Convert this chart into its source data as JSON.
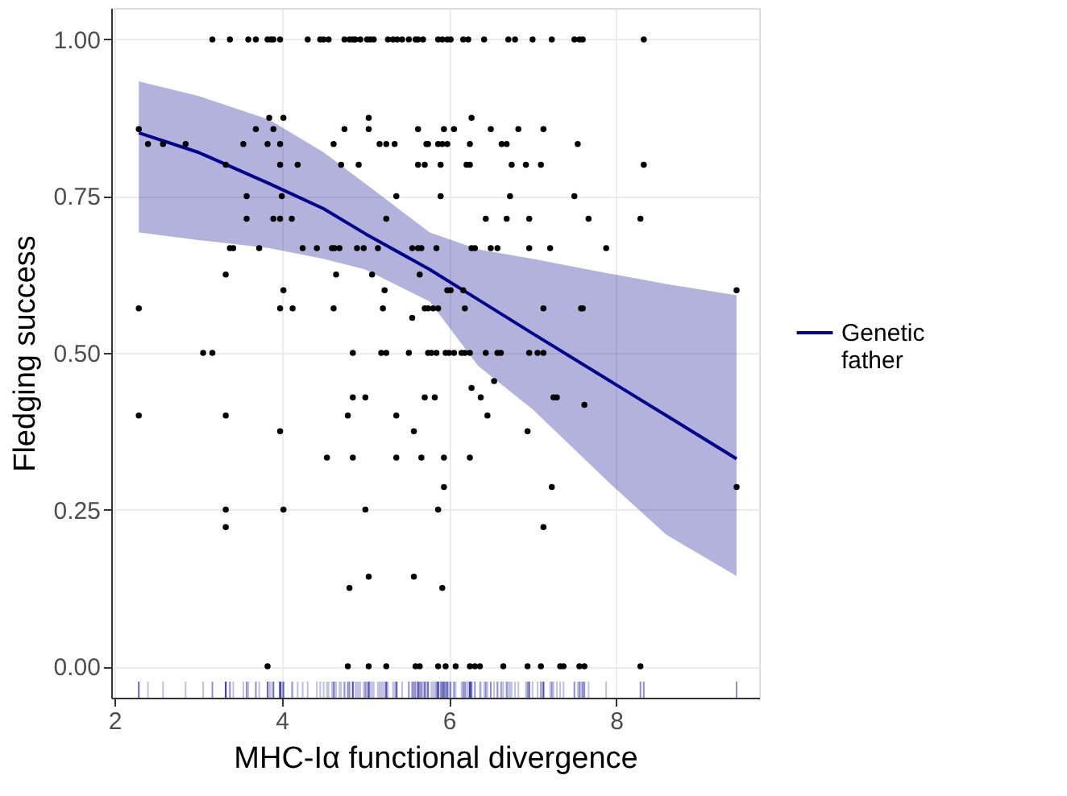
{
  "chart_data": {
    "type": "scatter",
    "xlabel": "MHC-Iα functional divergence",
    "ylabel": "Fledging success",
    "xlim": [
      1.96,
      9.71
    ],
    "xticks": [
      2,
      4,
      6,
      8
    ],
    "ylim": [
      -0.05,
      1.05
    ],
    "yticks": [
      {
        "value": 0,
        "label": "0.00"
      },
      {
        "value": 0.25,
        "label": "0.25"
      },
      {
        "value": 0.5,
        "label": "0.50"
      },
      {
        "value": 0.75,
        "label": "0.75"
      },
      {
        "value": 1,
        "label": "1.00"
      }
    ],
    "grid": true,
    "legend": "right",
    "series": [
      {
        "color": "#000000",
        "marker": "circle",
        "x": [
          3.17,
          3.38,
          3.6,
          3.69,
          3.83,
          3.87,
          3.9,
          3.98,
          4.31,
          4.46,
          4.5,
          4.56,
          4.75,
          4.81,
          4.85,
          4.88,
          4.94,
          5.02,
          5.06,
          5.1,
          5.27,
          5.33,
          5.38,
          5.44,
          5.52,
          5.6,
          5.63,
          5.69,
          5.87,
          5.92,
          5.98,
          6.02,
          6.17,
          6.23,
          6.42,
          6.71,
          6.79,
          7.0,
          7.23,
          7.5,
          7.56,
          7.6,
          8.33,
          3.85,
          4.02,
          5.04,
          6.27,
          2.29,
          3.69,
          3.9,
          4.75,
          5.04,
          5.63,
          5.94,
          6.06,
          6.5,
          6.83,
          7.13,
          2.4,
          2.58,
          2.85,
          3.54,
          3.83,
          3.98,
          4.62,
          5.17,
          5.25,
          5.35,
          5.73,
          5.75,
          5.87,
          5.92,
          5.98,
          6.25,
          6.63,
          6.69,
          7.54,
          3.33,
          3.98,
          4.19,
          4.71,
          4.92,
          5.63,
          5.71,
          5.9,
          6.21,
          6.25,
          6.75,
          6.92,
          7.1,
          8.33,
          3.58,
          4.0,
          5.37,
          5.9,
          6.73,
          7.5,
          3.58,
          3.9,
          3.98,
          4.12,
          5.25,
          6.44,
          6.69,
          6.96,
          7.67,
          8.29,
          3.38,
          3.42,
          3.73,
          4.25,
          4.42,
          4.6,
          4.63,
          4.69,
          4.9,
          4.98,
          5.15,
          5.56,
          5.63,
          5.67,
          5.85,
          6.27,
          6.31,
          6.5,
          6.58,
          6.96,
          7.21,
          7.88,
          3.33,
          4.65,
          5.08,
          5.65,
          4.02,
          5.23,
          5.98,
          6.02,
          6.17,
          9.44,
          2.29,
          3.98,
          4.13,
          4.62,
          5.21,
          5.71,
          5.75,
          5.81,
          5.87,
          6.19,
          7.13,
          7.58,
          7.6,
          5.56,
          3.06,
          3.17,
          4.85,
          5.19,
          5.25,
          5.52,
          5.75,
          5.79,
          5.85,
          5.96,
          6.0,
          6.06,
          6.15,
          6.19,
          6.25,
          6.44,
          6.58,
          6.62,
          6.96,
          7.06,
          7.13,
          6.54,
          6.27,
          4.85,
          5.0,
          5.71,
          5.83,
          6.38,
          7.25,
          7.29,
          7.62,
          2.29,
          3.33,
          4.79,
          5.37,
          6.46,
          3.98,
          5.58,
          6.94,
          4.54,
          4.85,
          5.37,
          5.67,
          5.94,
          6.25,
          5.94,
          7.23,
          9.44,
          3.33,
          4.02,
          5.0,
          5.87,
          3.33,
          7.13,
          5.04,
          5.58,
          4.81,
          5.92,
          3.83,
          4.79,
          5.04,
          5.25,
          5.6,
          5.65,
          5.87,
          5.96,
          6.08,
          6.25,
          6.31,
          6.37,
          6.65,
          6.94,
          7.1,
          7.33,
          7.37,
          7.56,
          7.62,
          8.29
        ],
        "values": [
          1,
          1,
          1,
          1,
          1,
          1,
          1,
          1,
          1,
          1,
          1,
          1,
          1,
          1,
          1,
          1,
          1,
          1,
          1,
          1,
          1,
          1,
          1,
          1,
          1,
          1,
          1,
          1,
          1,
          1,
          1,
          1,
          1,
          1,
          1,
          1,
          1,
          1,
          1,
          1,
          1,
          1,
          1,
          0.875,
          0.875,
          0.875,
          0.875,
          0.857,
          0.857,
          0.857,
          0.857,
          0.857,
          0.857,
          0.857,
          0.857,
          0.857,
          0.857,
          0.857,
          0.833,
          0.833,
          0.833,
          0.833,
          0.833,
          0.833,
          0.833,
          0.833,
          0.833,
          0.833,
          0.833,
          0.833,
          0.833,
          0.833,
          0.833,
          0.833,
          0.833,
          0.833,
          0.833,
          0.8,
          0.8,
          0.8,
          0.8,
          0.8,
          0.8,
          0.8,
          0.8,
          0.8,
          0.8,
          0.8,
          0.8,
          0.8,
          0.8,
          0.75,
          0.75,
          0.75,
          0.75,
          0.75,
          0.75,
          0.714,
          0.714,
          0.714,
          0.714,
          0.714,
          0.714,
          0.714,
          0.714,
          0.714,
          0.714,
          0.667,
          0.667,
          0.667,
          0.667,
          0.667,
          0.667,
          0.667,
          0.667,
          0.667,
          0.667,
          0.667,
          0.667,
          0.667,
          0.667,
          0.667,
          0.667,
          0.667,
          0.667,
          0.667,
          0.667,
          0.667,
          0.667,
          0.625,
          0.625,
          0.625,
          0.625,
          0.6,
          0.6,
          0.6,
          0.6,
          0.6,
          0.6,
          0.571,
          0.571,
          0.571,
          0.571,
          0.571,
          0.571,
          0.571,
          0.571,
          0.571,
          0.571,
          0.571,
          0.571,
          0.571,
          0.556,
          0.5,
          0.5,
          0.5,
          0.5,
          0.5,
          0.5,
          0.5,
          0.5,
          0.5,
          0.5,
          0.5,
          0.5,
          0.5,
          0.5,
          0.5,
          0.5,
          0.5,
          0.5,
          0.5,
          0.5,
          0.5,
          0.455,
          0.444,
          0.429,
          0.429,
          0.429,
          0.429,
          0.429,
          0.429,
          0.429,
          0.417,
          0.4,
          0.4,
          0.4,
          0.4,
          0.4,
          0.375,
          0.375,
          0.375,
          0.333,
          0.333,
          0.333,
          0.333,
          0.333,
          0.333,
          0.286,
          0.286,
          0.286,
          0.25,
          0.25,
          0.25,
          0.25,
          0.222,
          0.222,
          0.143,
          0.143,
          0.125,
          0.125,
          0,
          0,
          0,
          0,
          0,
          0,
          0,
          0,
          0,
          0,
          0,
          0,
          0,
          0,
          0,
          0,
          0,
          0,
          0,
          0
        ]
      },
      {
        "type": "line",
        "name": "Genetic father",
        "color": "#00008b",
        "x": [
          2.29,
          3.0,
          3.85,
          4.5,
          5.0,
          5.77,
          6.35,
          7.0,
          7.94,
          8.6,
          9.44
        ],
        "values": [
          0.851,
          0.82,
          0.77,
          0.73,
          0.69,
          0.633,
          0.585,
          0.531,
          0.454,
          0.4,
          0.331
        ],
        "lower": [
          0.692,
          0.68,
          0.667,
          0.65,
          0.633,
          0.582,
          0.479,
          0.41,
          0.29,
          0.21,
          0.144
        ],
        "upper": [
          0.933,
          0.91,
          0.872,
          0.82,
          0.77,
          0.692,
          0.665,
          0.65,
          0.626,
          0.61,
          0.592
        ]
      }
    ]
  }
}
